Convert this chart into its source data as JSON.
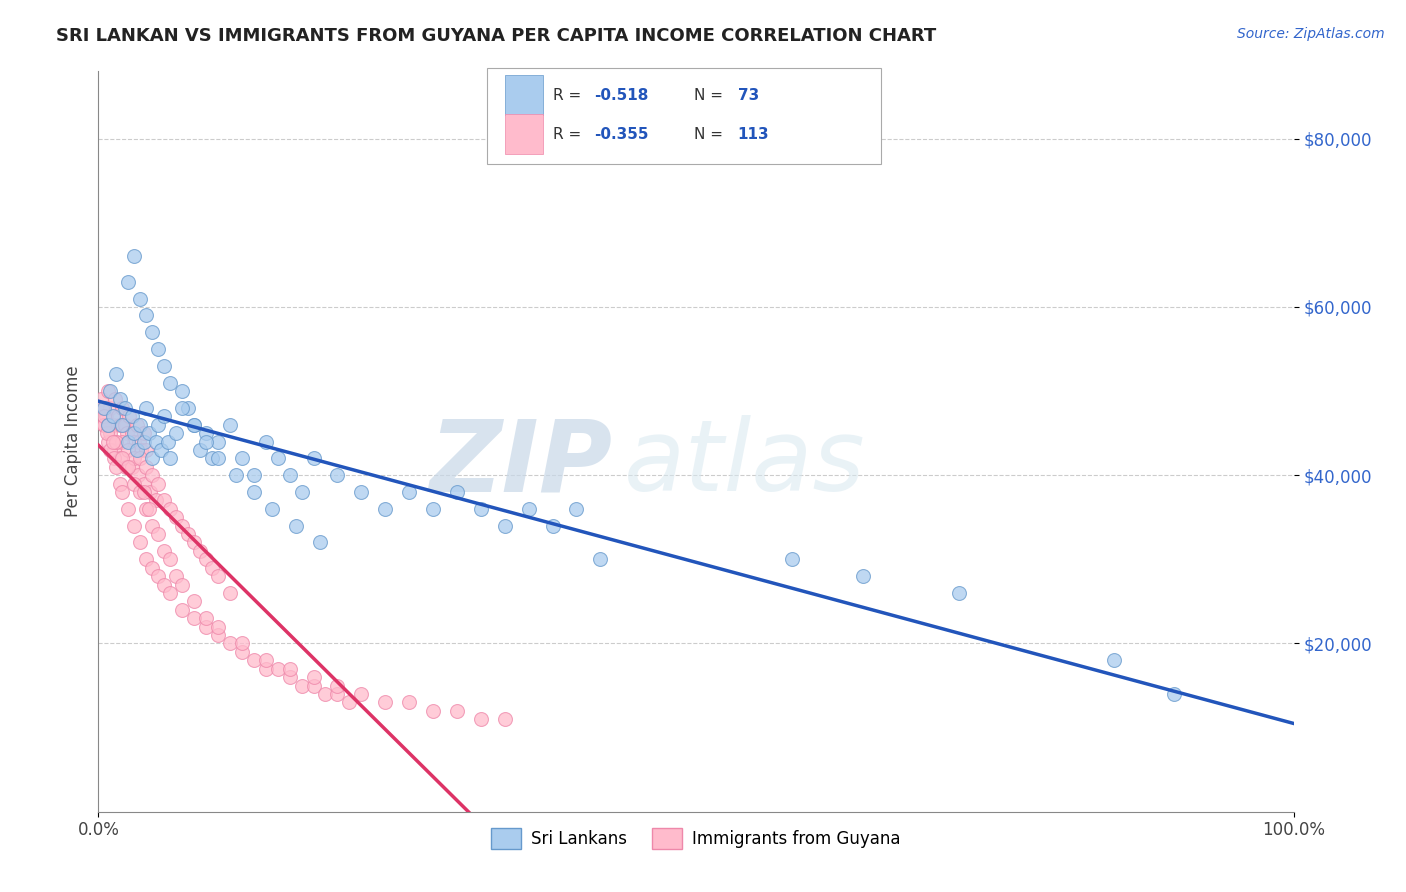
{
  "title": "SRI LANKAN VS IMMIGRANTS FROM GUYANA PER CAPITA INCOME CORRELATION CHART",
  "source_text": "Source: ZipAtlas.com",
  "ylabel": "Per Capita Income",
  "xlim": [
    0,
    1.0
  ],
  "ylim": [
    0,
    88000
  ],
  "yticks": [
    20000,
    40000,
    60000,
    80000
  ],
  "ytick_labels": [
    "$20,000",
    "$40,000",
    "$60,000",
    "$80,000"
  ],
  "xtick_positions": [
    0.0,
    1.0
  ],
  "xtick_labels": [
    "0.0%",
    "100.0%"
  ],
  "series1_color": "#aaccee",
  "series1_edge": "#6699cc",
  "series2_color": "#ffbbcc",
  "series2_edge": "#ee88aa",
  "line1_color": "#2255bb",
  "line2_color": "#dd3366",
  "dashed_color": "#cccccc",
  "watermark_zip": "ZIP",
  "watermark_atlas": "atlas",
  "legend_label1": "Sri Lankans",
  "legend_label2": "Immigrants from Guyana",
  "background_color": "#ffffff",
  "sri_lankan_x": [
    0.005,
    0.008,
    0.01,
    0.012,
    0.015,
    0.018,
    0.02,
    0.022,
    0.025,
    0.028,
    0.03,
    0.032,
    0.035,
    0.038,
    0.04,
    0.042,
    0.045,
    0.048,
    0.05,
    0.052,
    0.055,
    0.058,
    0.06,
    0.065,
    0.07,
    0.075,
    0.08,
    0.085,
    0.09,
    0.095,
    0.1,
    0.11,
    0.12,
    0.13,
    0.14,
    0.15,
    0.16,
    0.17,
    0.18,
    0.2,
    0.22,
    0.24,
    0.26,
    0.28,
    0.3,
    0.32,
    0.34,
    0.36,
    0.38,
    0.4,
    0.025,
    0.03,
    0.035,
    0.04,
    0.045,
    0.05,
    0.055,
    0.06,
    0.07,
    0.08,
    0.09,
    0.1,
    0.115,
    0.13,
    0.145,
    0.165,
    0.185,
    0.58,
    0.64,
    0.72,
    0.85,
    0.9,
    0.42
  ],
  "sri_lankan_y": [
    48000,
    46000,
    50000,
    47000,
    52000,
    49000,
    46000,
    48000,
    44000,
    47000,
    45000,
    43000,
    46000,
    44000,
    48000,
    45000,
    42000,
    44000,
    46000,
    43000,
    47000,
    44000,
    42000,
    45000,
    50000,
    48000,
    46000,
    43000,
    45000,
    42000,
    44000,
    46000,
    42000,
    40000,
    44000,
    42000,
    40000,
    38000,
    42000,
    40000,
    38000,
    36000,
    38000,
    36000,
    38000,
    36000,
    34000,
    36000,
    34000,
    36000,
    63000,
    66000,
    61000,
    59000,
    57000,
    55000,
    53000,
    51000,
    48000,
    46000,
    44000,
    42000,
    40000,
    38000,
    36000,
    34000,
    32000,
    30000,
    28000,
    26000,
    18000,
    14000,
    30000
  ],
  "guyana_x": [
    0.002,
    0.004,
    0.006,
    0.008,
    0.01,
    0.012,
    0.014,
    0.016,
    0.018,
    0.02,
    0.022,
    0.024,
    0.026,
    0.028,
    0.03,
    0.032,
    0.034,
    0.036,
    0.038,
    0.04,
    0.005,
    0.008,
    0.01,
    0.013,
    0.015,
    0.018,
    0.02,
    0.023,
    0.025,
    0.028,
    0.03,
    0.033,
    0.035,
    0.038,
    0.04,
    0.043,
    0.045,
    0.048,
    0.05,
    0.055,
    0.06,
    0.065,
    0.07,
    0.075,
    0.08,
    0.085,
    0.09,
    0.095,
    0.1,
    0.11,
    0.003,
    0.005,
    0.007,
    0.01,
    0.013,
    0.015,
    0.018,
    0.02,
    0.025,
    0.03,
    0.035,
    0.04,
    0.045,
    0.05,
    0.055,
    0.06,
    0.07,
    0.08,
    0.09,
    0.1,
    0.11,
    0.12,
    0.13,
    0.14,
    0.15,
    0.16,
    0.17,
    0.18,
    0.19,
    0.2,
    0.015,
    0.02,
    0.025,
    0.03,
    0.035,
    0.04,
    0.045,
    0.05,
    0.055,
    0.06,
    0.065,
    0.07,
    0.08,
    0.09,
    0.1,
    0.12,
    0.14,
    0.16,
    0.18,
    0.2,
    0.22,
    0.24,
    0.26,
    0.28,
    0.3,
    0.32,
    0.34,
    0.005,
    0.008,
    0.012,
    0.038,
    0.042,
    0.21
  ],
  "guyana_y": [
    49000,
    48000,
    47000,
    50000,
    48000,
    46000,
    49000,
    47000,
    46000,
    48000,
    46000,
    45000,
    47000,
    45000,
    44000,
    46000,
    44000,
    43000,
    45000,
    43000,
    46000,
    44000,
    45000,
    43000,
    44000,
    42000,
    44000,
    41000,
    43000,
    41000,
    42000,
    40000,
    42000,
    39000,
    41000,
    38000,
    40000,
    37000,
    39000,
    37000,
    36000,
    35000,
    34000,
    33000,
    32000,
    31000,
    30000,
    29000,
    28000,
    26000,
    48000,
    46000,
    45000,
    43000,
    42000,
    41000,
    39000,
    38000,
    36000,
    34000,
    32000,
    30000,
    29000,
    28000,
    27000,
    26000,
    24000,
    23000,
    22000,
    21000,
    20000,
    19000,
    18000,
    17000,
    17000,
    16000,
    15000,
    15000,
    14000,
    14000,
    44000,
    42000,
    41000,
    39000,
    38000,
    36000,
    34000,
    33000,
    31000,
    30000,
    28000,
    27000,
    25000,
    23000,
    22000,
    20000,
    18000,
    17000,
    16000,
    15000,
    14000,
    13000,
    13000,
    12000,
    12000,
    11000,
    11000,
    47000,
    46000,
    44000,
    38000,
    36000,
    13000
  ]
}
